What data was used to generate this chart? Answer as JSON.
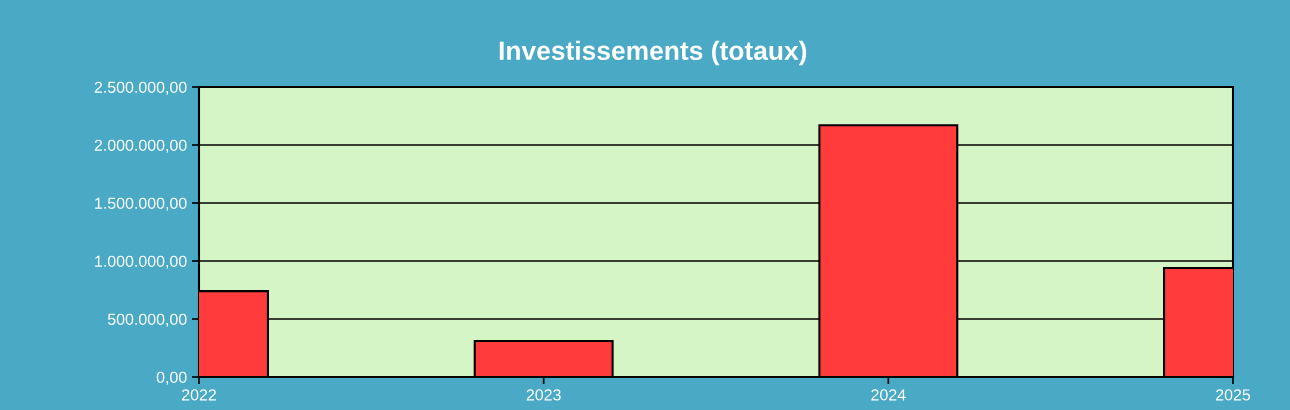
{
  "chart_data": {
    "type": "bar",
    "title": "Investissements (totaux)",
    "x": [
      2022,
      2023,
      2024,
      2025
    ],
    "values": [
      740000,
      310000,
      2170000,
      940000
    ],
    "color": "#ff3b3b",
    "xlim": [
      2022,
      2025
    ],
    "xticks": [
      2022,
      2023,
      2024,
      2025
    ],
    "ylim": [
      0,
      2500000
    ],
    "yticks": [
      {
        "value": 0,
        "label": "0,00"
      },
      {
        "value": 500000,
        "label": "500.000,00"
      },
      {
        "value": 1000000,
        "label": "1.000.000,00"
      },
      {
        "value": 1500000,
        "label": "1.500.000,00"
      },
      {
        "value": 2000000,
        "label": "2.000.000,00"
      },
      {
        "value": 2500000,
        "label": "2.500.000,00"
      }
    ],
    "grid": "y"
  }
}
